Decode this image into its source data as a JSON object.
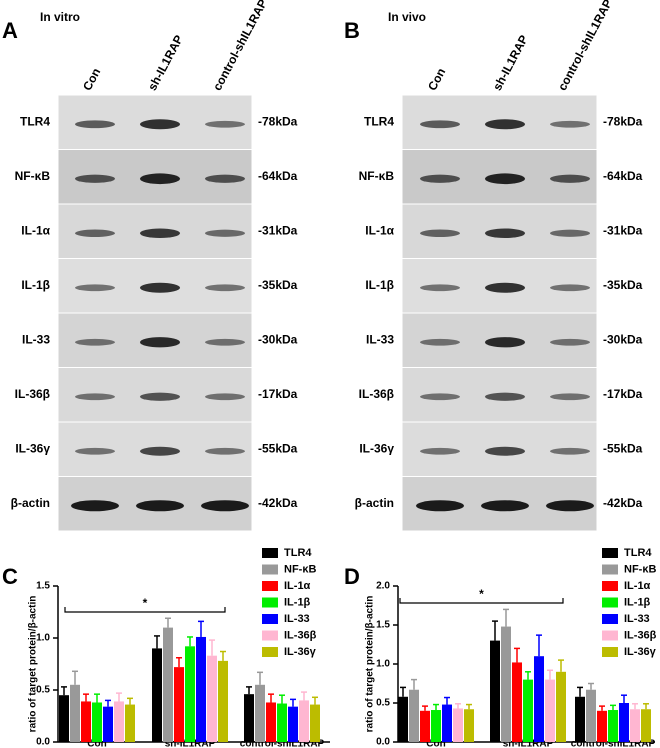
{
  "panel_a": {
    "letter": "A",
    "title": "In vitro",
    "lanes": [
      "Con",
      "sh-IL1RAP",
      "control-shIL1RAP"
    ],
    "proteins": [
      "TLR4",
      "NF-κB",
      "IL-1α",
      "IL-1β",
      "IL-33",
      "IL-36β",
      "IL-36γ",
      "β-actin"
    ],
    "sizes": [
      "-78kDa",
      "-64kDa",
      "-31kDa",
      "-35kDa",
      "-30kDa",
      "-17kDa",
      "-55kDa",
      "-42kDa"
    ]
  },
  "panel_b": {
    "letter": "B",
    "title": "In vivo",
    "lanes": [
      "Con",
      "sh-IL1RAP",
      "control-shIL1RAP"
    ],
    "proteins": [
      "TLR4",
      "NF-κB",
      "IL-1α",
      "IL-1β",
      "IL-33",
      "IL-36β",
      "IL-36γ",
      "β-actin"
    ],
    "sizes": [
      "-78kDa",
      "-64kDa",
      "-31kDa",
      "-35kDa",
      "-30kDa",
      "-17kDa",
      "-55kDa",
      "-42kDa"
    ]
  },
  "chart_data": [
    {
      "type": "bar",
      "letter": "C",
      "y_label": "ratio of target protein/β-actin",
      "annotation": "*",
      "categories": [
        "Con",
        "sh-IL1RAP",
        "control-shIL1RAP"
      ],
      "ylim": [
        0,
        1.5
      ],
      "yticks": [
        {
          "value": 0,
          "label": "0.0"
        },
        0.5,
        {
          "value": 1,
          "label": "1.0"
        },
        1.5
      ],
      "series": [
        {
          "name": "TLR4",
          "color": "#000000",
          "values": [
            0.45,
            0.9,
            0.46
          ],
          "errors": [
            0.08,
            0.12,
            0.07
          ]
        },
        {
          "name": "NF-κB",
          "color": "#999999",
          "values": [
            0.55,
            1.1,
            0.55
          ],
          "errors": [
            0.13,
            0.09,
            0.12
          ]
        },
        {
          "name": "IL-1α",
          "color": "#ff0000",
          "values": [
            0.39,
            0.72,
            0.38
          ],
          "errors": [
            0.07,
            0.09,
            0.08
          ]
        },
        {
          "name": "IL-1β",
          "color": "#00ee00",
          "values": [
            0.38,
            0.92,
            0.37
          ],
          "errors": [
            0.08,
            0.09,
            0.08
          ]
        },
        {
          "name": "IL-33",
          "color": "#0000ff",
          "values": [
            0.34,
            1.01,
            0.34
          ],
          "errors": [
            0.06,
            0.15,
            0.07
          ]
        },
        {
          "name": "IL-36β",
          "color": "#ffb6d1",
          "values": [
            0.39,
            0.83,
            0.4
          ],
          "errors": [
            0.08,
            0.15,
            0.08
          ]
        },
        {
          "name": "IL-36γ",
          "color": "#bcbc00",
          "values": [
            0.36,
            0.78,
            0.36
          ],
          "errors": [
            0.06,
            0.09,
            0.07
          ]
        }
      ]
    },
    {
      "type": "bar",
      "letter": "D",
      "y_label": "ratio of target protein/β-actin",
      "annotation": "*",
      "categories": [
        "Con",
        "sh-IL1RAP",
        "control-shIL1RAP"
      ],
      "ylim": [
        0,
        2
      ],
      "yticks": [
        {
          "value": 0,
          "label": "0.0"
        },
        0.5,
        {
          "value": 1,
          "label": "1.0"
        },
        1.5,
        {
          "value": 2,
          "label": "2.0"
        }
      ],
      "series": [
        {
          "name": "TLR4",
          "color": "#000000",
          "values": [
            0.58,
            1.3,
            0.58
          ],
          "errors": [
            0.12,
            0.25,
            0.12
          ]
        },
        {
          "name": "NF-κB",
          "color": "#999999",
          "values": [
            0.67,
            1.48,
            0.67
          ],
          "errors": [
            0.13,
            0.22,
            0.08
          ]
        },
        {
          "name": "IL-1α",
          "color": "#ff0000",
          "values": [
            0.4,
            1.02,
            0.4
          ],
          "errors": [
            0.06,
            0.18,
            0.06
          ]
        },
        {
          "name": "IL-1β",
          "color": "#00ee00",
          "values": [
            0.41,
            0.8,
            0.41
          ],
          "errors": [
            0.07,
            0.1,
            0.06
          ]
        },
        {
          "name": "IL-33",
          "color": "#0000ff",
          "values": [
            0.48,
            1.1,
            0.5
          ],
          "errors": [
            0.09,
            0.27,
            0.1
          ]
        },
        {
          "name": "IL-36β",
          "color": "#ffb6d1",
          "values": [
            0.43,
            0.8,
            0.42
          ],
          "errors": [
            0.06,
            0.12,
            0.07
          ]
        },
        {
          "name": "IL-36γ",
          "color": "#bcbc00",
          "values": [
            0.42,
            0.9,
            0.42
          ],
          "errors": [
            0.06,
            0.15,
            0.07
          ]
        }
      ]
    }
  ]
}
